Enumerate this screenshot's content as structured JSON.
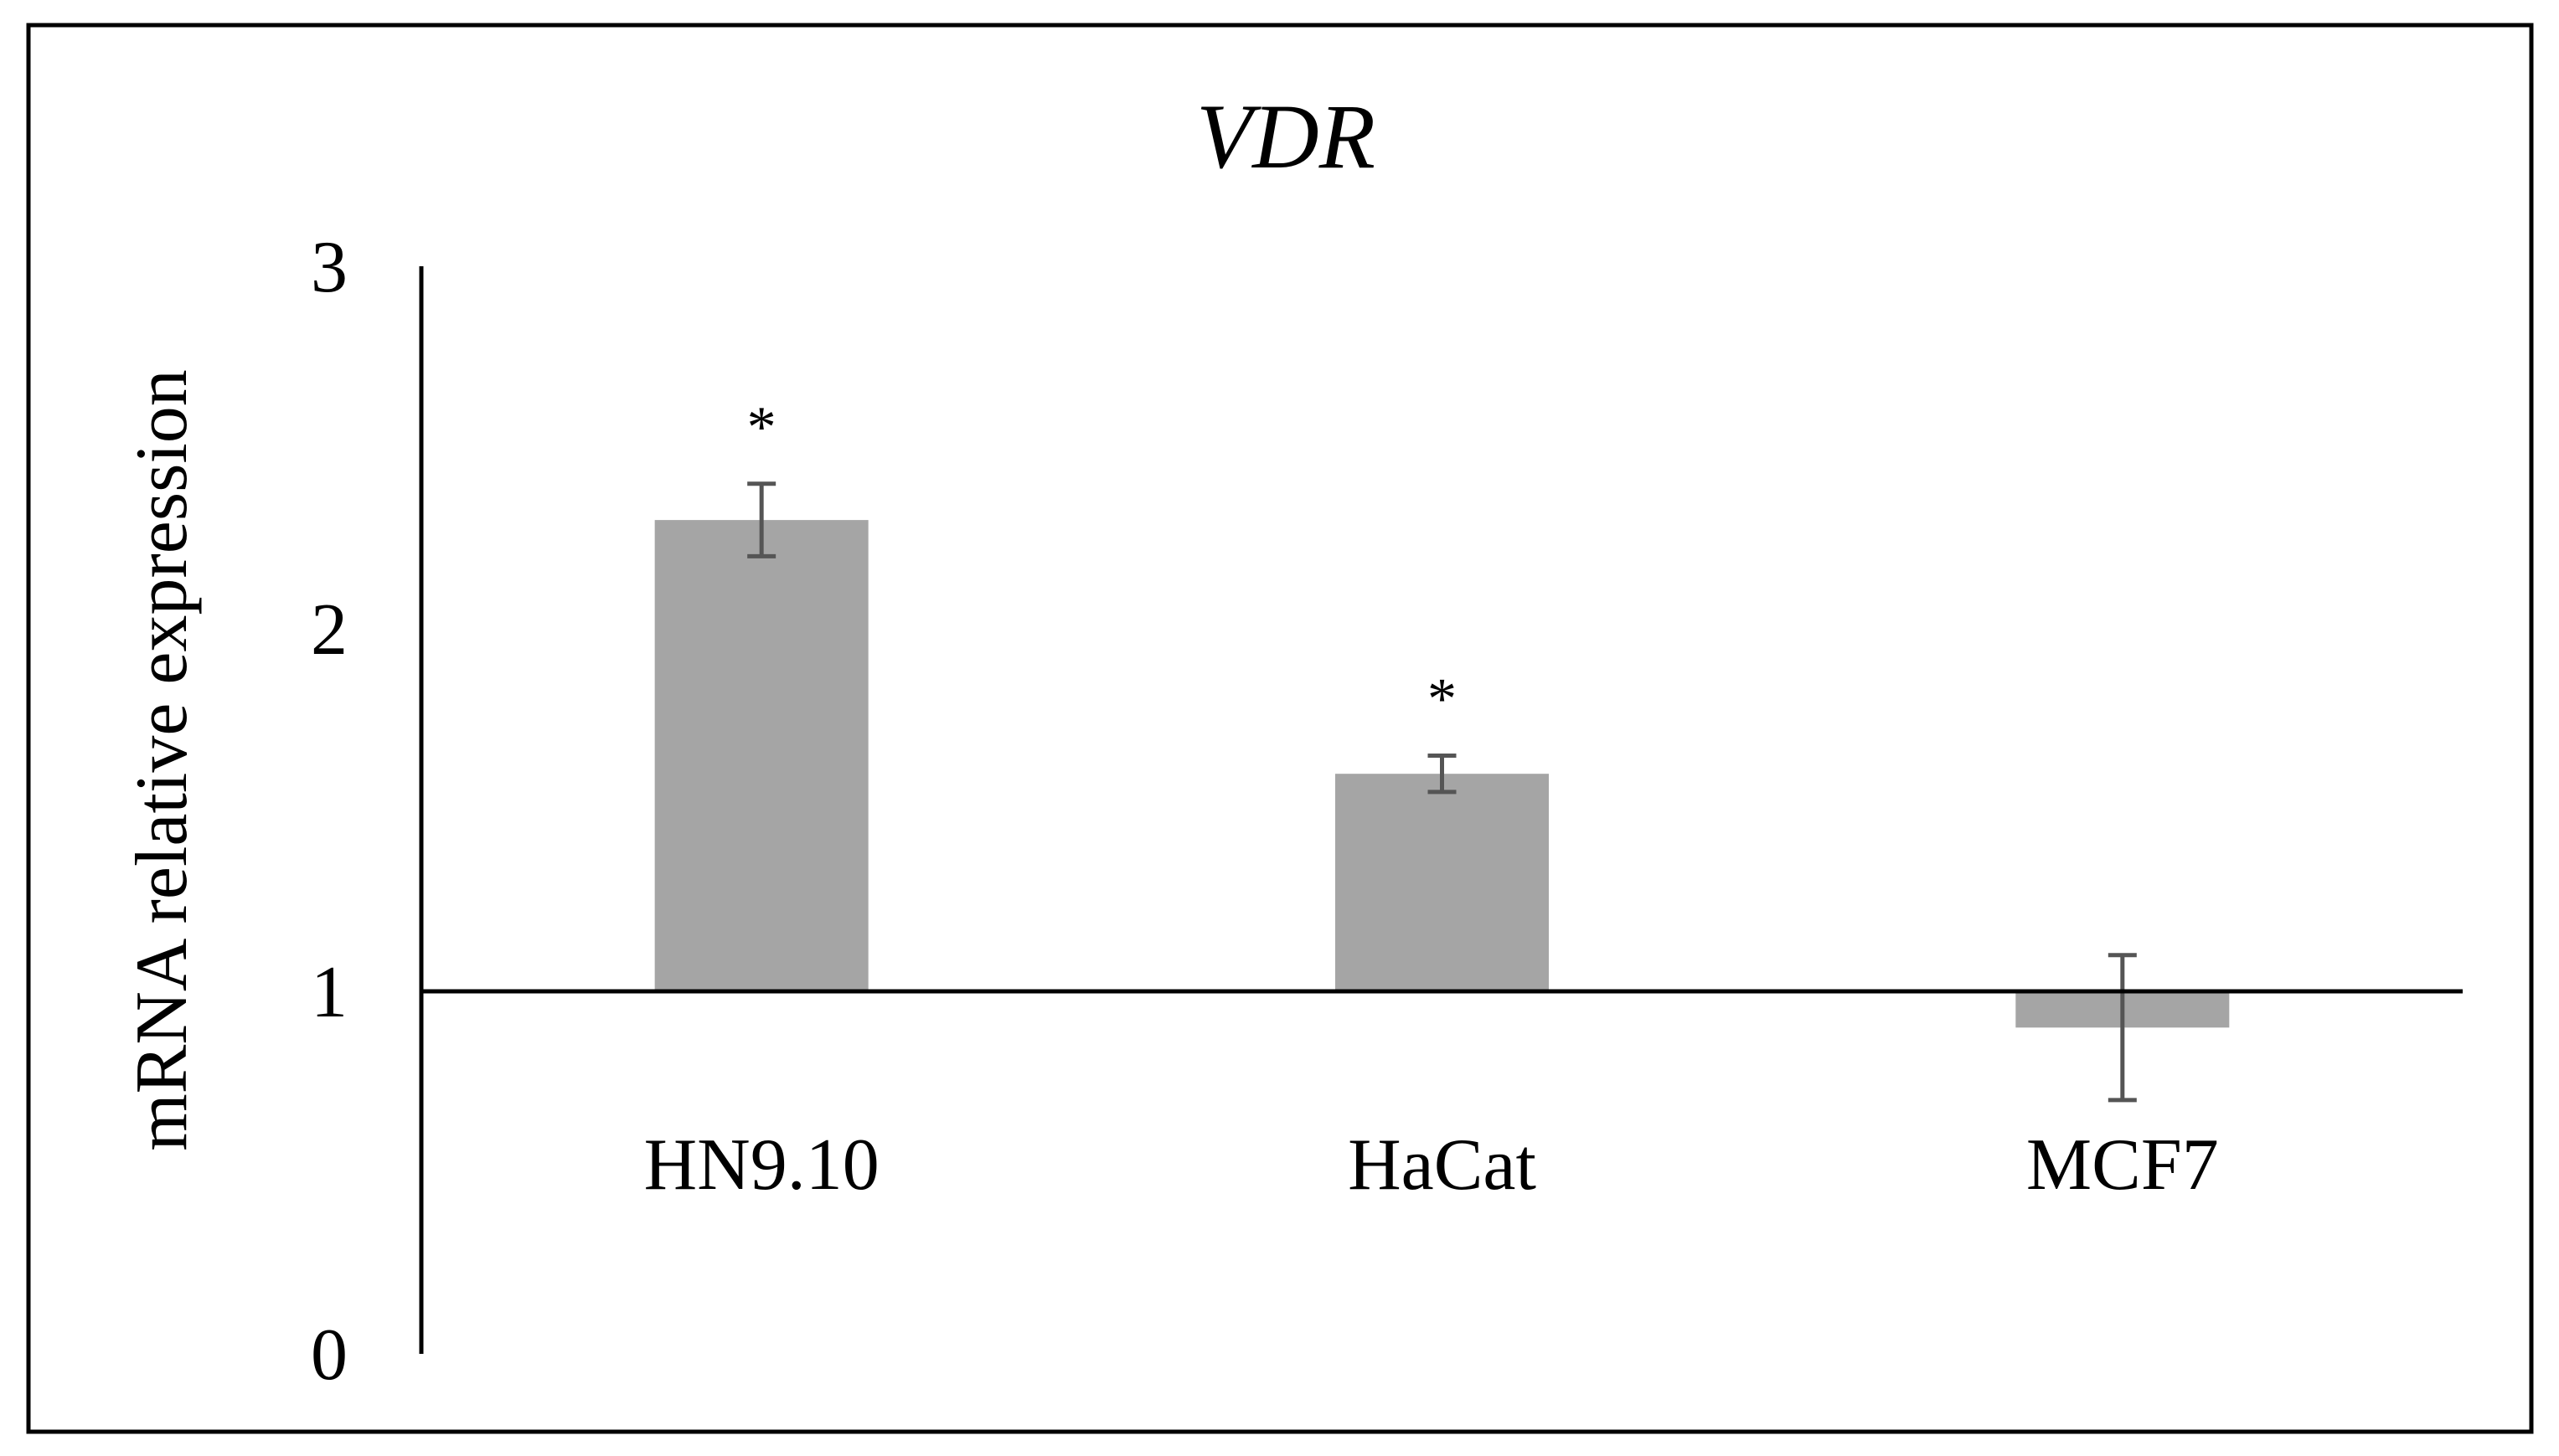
{
  "chart_data": {
    "type": "bar",
    "title": "VDR",
    "xlabel": "",
    "ylabel": "mRNA relative expression",
    "ylim": [
      0,
      3
    ],
    "yticks": [
      "0",
      "1",
      "2",
      "3"
    ],
    "baseline": 1,
    "grid": false,
    "categories": [
      "HN9.10",
      "HaCat",
      "MCF7"
    ],
    "values": [
      2.3,
      1.6,
      0.9
    ],
    "errors": [
      {
        "low": 2.2,
        "high": 2.4
      },
      {
        "low": 1.55,
        "high": 1.65
      },
      {
        "low": 0.7,
        "high": 1.1
      }
    ],
    "significance": [
      "*",
      "*",
      ""
    ],
    "colors": {
      "bar": "#a5a5a5",
      "error": "#555555",
      "axis": "#000000",
      "frame": "#000000"
    }
  }
}
